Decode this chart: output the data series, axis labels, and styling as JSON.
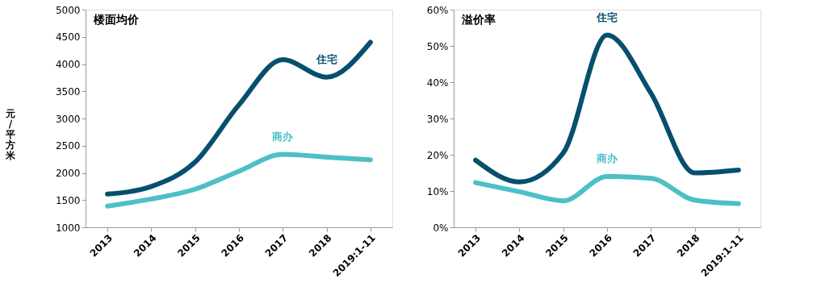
{
  "chart_data": [
    {
      "type": "line",
      "title": "楼面均价",
      "ylabel": "元/平方米",
      "categories": [
        "2013",
        "2014",
        "2015",
        "2016",
        "2017",
        "2018",
        "2019:1-11"
      ],
      "ylim": [
        1000,
        5000
      ],
      "yticks": [
        1000,
        1500,
        2000,
        2500,
        3000,
        3500,
        4000,
        4500,
        5000
      ],
      "grid": false,
      "marker": "none",
      "line_style": "solid",
      "series": [
        {
          "name": "住宅",
          "color": "#064f6e",
          "values": [
            1610,
            1750,
            2200,
            3250,
            4080,
            3760,
            4400
          ]
        },
        {
          "name": "商办",
          "color": "#4dbfc7",
          "values": [
            1390,
            1520,
            1700,
            2030,
            2340,
            2290,
            2240
          ]
        }
      ]
    },
    {
      "type": "line",
      "title": "溢价率",
      "categories": [
        "2013",
        "2014",
        "2015",
        "2016",
        "2017",
        "2018",
        "2019:1-11"
      ],
      "ylim": [
        0,
        60
      ],
      "yticks": [
        {
          "value": 0,
          "label": "0%"
        },
        {
          "value": 10,
          "label": "10%"
        },
        {
          "value": 20,
          "label": "20%"
        },
        {
          "value": 30,
          "label": "30%"
        },
        {
          "value": 40,
          "label": "40%"
        },
        {
          "value": 50,
          "label": "50%"
        },
        {
          "value": 60,
          "label": "60%"
        }
      ],
      "grid": false,
      "marker": "none",
      "line_style": "solid",
      "series": [
        {
          "name": "住宅",
          "color": "#064f6e",
          "values": [
            18.5,
            12.5,
            20.5,
            53,
            37,
            15,
            15.8
          ]
        },
        {
          "name": "商办",
          "color": "#4dbfc7",
          "values": [
            12.3,
            9.8,
            7.3,
            14,
            13.5,
            7.5,
            6.5
          ]
        }
      ]
    }
  ]
}
